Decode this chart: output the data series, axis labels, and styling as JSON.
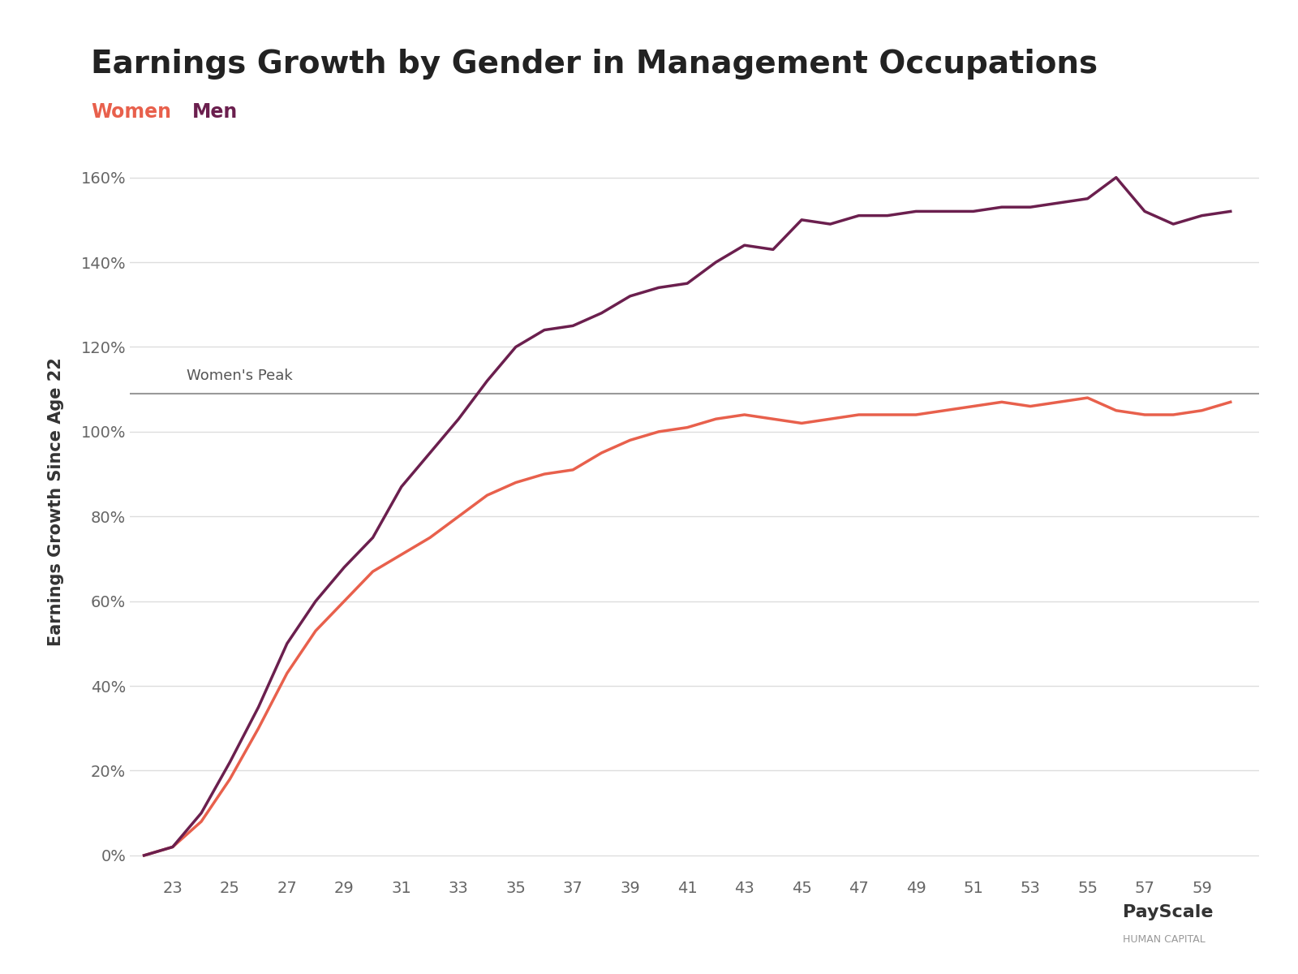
{
  "title": "Earnings Growth by Gender in Management Occupations",
  "ylabel": "Earnings Growth Since Age 22",
  "women_color": "#E8604C",
  "men_color": "#6B1F4E",
  "peak_line_color": "#999999",
  "peak_label": "Women's Peak",
  "peak_value": 109,
  "background_color": "#FFFFFF",
  "grid_color": "#DDDDDD",
  "title_color": "#222222",
  "legend_women_color": "#E8604C",
  "legend_men_color": "#6B1F4E",
  "ages": [
    22,
    23,
    24,
    25,
    26,
    27,
    28,
    29,
    30,
    31,
    32,
    33,
    34,
    35,
    36,
    37,
    38,
    39,
    40,
    41,
    42,
    43,
    44,
    45,
    46,
    47,
    48,
    49,
    50,
    51,
    52,
    53,
    54,
    55,
    56,
    57,
    58,
    59,
    60
  ],
  "women_pct": [
    0,
    2,
    8,
    18,
    30,
    43,
    53,
    60,
    67,
    71,
    75,
    80,
    85,
    88,
    90,
    91,
    95,
    98,
    100,
    101,
    103,
    104,
    103,
    102,
    103,
    104,
    104,
    104,
    105,
    106,
    107,
    106,
    107,
    108,
    105,
    104,
    104,
    105,
    107
  ],
  "men_pct": [
    0,
    2,
    10,
    22,
    35,
    50,
    60,
    68,
    75,
    87,
    95,
    103,
    112,
    120,
    124,
    125,
    128,
    132,
    134,
    135,
    140,
    144,
    143,
    150,
    149,
    151,
    151,
    152,
    152,
    152,
    153,
    153,
    154,
    155,
    160,
    152,
    149,
    151,
    152
  ],
  "xtick_start": 23,
  "xtick_end": 59,
  "xtick_step": 2,
  "ytick_values": [
    0,
    20,
    40,
    60,
    80,
    100,
    120,
    140,
    160
  ],
  "ylim": [
    -5,
    172
  ],
  "xlim": [
    21.5,
    61
  ]
}
